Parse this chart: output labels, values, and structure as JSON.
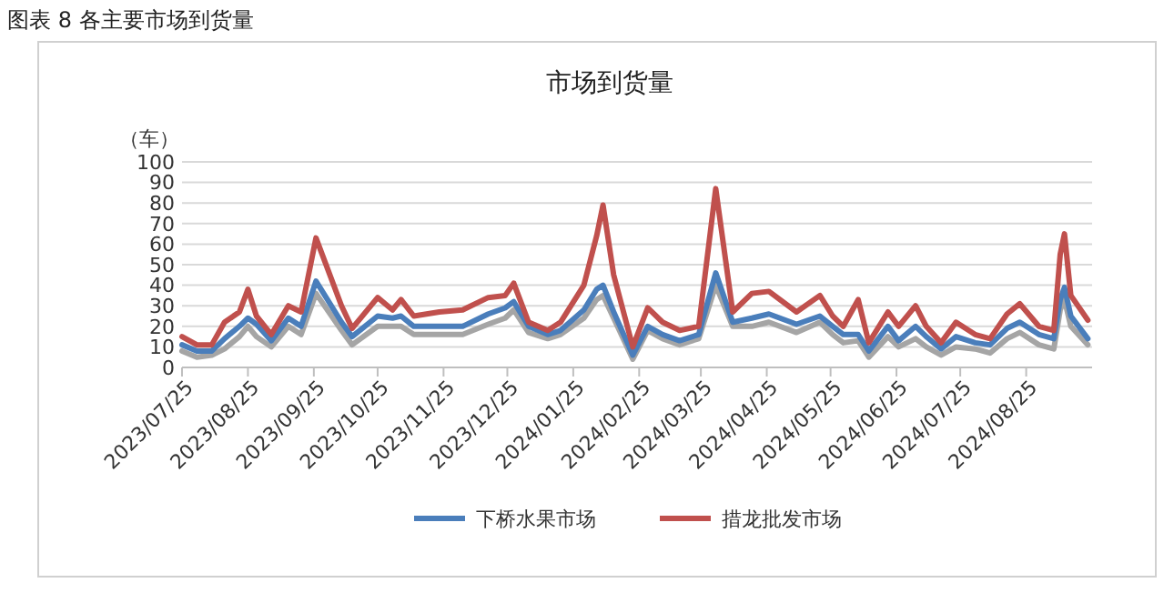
{
  "chart_data": {
    "type": "line",
    "title": "市场到货量",
    "ylabel": "（车）",
    "annotations": [
      "图表 8  各主要市场到货量"
    ],
    "x": [
      "2023-07-25",
      "2023-08-01",
      "2023-08-08",
      "2023-08-14",
      "2023-08-21",
      "2023-08-25",
      "2023-08-29",
      "2023-09-05",
      "2023-09-13",
      "2023-09-19",
      "2023-09-26",
      "2023-10-08",
      "2023-10-13",
      "2023-10-25",
      "2023-11-01",
      "2023-11-05",
      "2023-11-11",
      "2023-11-23",
      "2023-12-04",
      "2023-12-16",
      "2023-12-24",
      "2023-12-28",
      "2024-01-04",
      "2024-01-13",
      "2024-01-19",
      "2024-01-30",
      "2024-02-05",
      "2024-02-08",
      "2024-02-13",
      "2024-02-22",
      "2024-02-29",
      "2024-03-07",
      "2024-03-15",
      "2024-03-24",
      "2024-04-01",
      "2024-04-09",
      "2024-04-18",
      "2024-04-26",
      "2024-05-09",
      "2024-05-20",
      "2024-05-26",
      "2024-05-31",
      "2024-06-07",
      "2024-06-12",
      "2024-06-21",
      "2024-06-26",
      "2024-07-04",
      "2024-07-09",
      "2024-07-16",
      "2024-07-23",
      "2024-08-01",
      "2024-08-08",
      "2024-08-16",
      "2024-08-22",
      "2024-08-31",
      "2024-09-07",
      "2024-09-10",
      "2024-09-12",
      "2024-09-15",
      "2024-09-23"
    ],
    "series": [
      {
        "color": "#a5a5a5",
        "values": [
          8,
          5,
          6,
          9,
          15,
          20,
          15,
          10,
          20,
          16,
          36,
          18,
          11,
          20,
          20,
          20,
          16,
          16,
          16,
          21,
          24,
          28,
          17,
          14,
          16,
          24,
          33,
          35,
          24,
          4,
          18,
          14,
          11,
          14,
          40,
          20,
          20,
          22,
          17,
          22,
          16,
          12,
          13,
          5,
          15,
          10,
          14,
          10,
          6,
          10,
          9,
          7,
          14,
          17,
          11,
          9,
          28,
          33,
          20,
          11
        ]
      },
      {
        "name": "下桥水果市场",
        "color": "#4a7ebb",
        "values": [
          11,
          8,
          8,
          14,
          20,
          24,
          21,
          13,
          24,
          20,
          42,
          22,
          15,
          25,
          24,
          25,
          20,
          20,
          20,
          26,
          29,
          32,
          20,
          16,
          18,
          28,
          38,
          40,
          27,
          6,
          20,
          16,
          13,
          16,
          46,
          22,
          24,
          26,
          21,
          25,
          20,
          16,
          16,
          8,
          20,
          13,
          20,
          15,
          9,
          15,
          12,
          11,
          19,
          22,
          16,
          14,
          33,
          39,
          25,
          14
        ]
      },
      {
        "name": "措龙批发市场",
        "color": "#c0504d",
        "values": [
          15,
          11,
          11,
          22,
          27,
          38,
          25,
          16,
          30,
          27,
          63,
          30,
          19,
          34,
          28,
          33,
          25,
          27,
          28,
          34,
          35,
          41,
          22,
          18,
          22,
          40,
          64,
          79,
          45,
          10,
          29,
          22,
          18,
          20,
          87,
          27,
          36,
          37,
          27,
          35,
          25,
          20,
          33,
          12,
          27,
          20,
          30,
          20,
          12,
          22,
          16,
          14,
          26,
          31,
          20,
          18,
          55,
          65,
          35,
          23
        ]
      }
    ],
    "xlim": [
      "2023-07-25",
      "2024-09-25"
    ],
    "xticks": [
      {
        "value": "2023-07-25",
        "label": "2023/07/25"
      },
      {
        "value": "2023-08-25",
        "label": "2023/08/25"
      },
      {
        "value": "2023-09-25",
        "label": "2023/09/25"
      },
      {
        "value": "2023-10-25",
        "label": "2023/10/25"
      },
      {
        "value": "2023-11-25",
        "label": "2023/11/25"
      },
      {
        "value": "2023-12-25",
        "label": "2023/12/25"
      },
      {
        "value": "2024-01-25",
        "label": "2024/01/25"
      },
      {
        "value": "2024-02-25",
        "label": "2024/02/25"
      },
      {
        "value": "2024-03-25",
        "label": "2024/03/25"
      },
      {
        "value": "2024-04-25",
        "label": "2024/04/25"
      },
      {
        "value": "2024-05-25",
        "label": "2024/05/25"
      },
      {
        "value": "2024-06-25",
        "label": "2024/06/25"
      },
      {
        "value": "2024-07-25",
        "label": "2024/07/25"
      },
      {
        "value": "2024-08-25",
        "label": "2024/08/25"
      }
    ],
    "ylim": [
      0,
      100
    ],
    "yticks": [
      0,
      10,
      20,
      30,
      40,
      50,
      60,
      70,
      80,
      90,
      100
    ],
    "grid": "y",
    "legend": "bottom",
    "marker": "none",
    "line_style": "solid"
  }
}
